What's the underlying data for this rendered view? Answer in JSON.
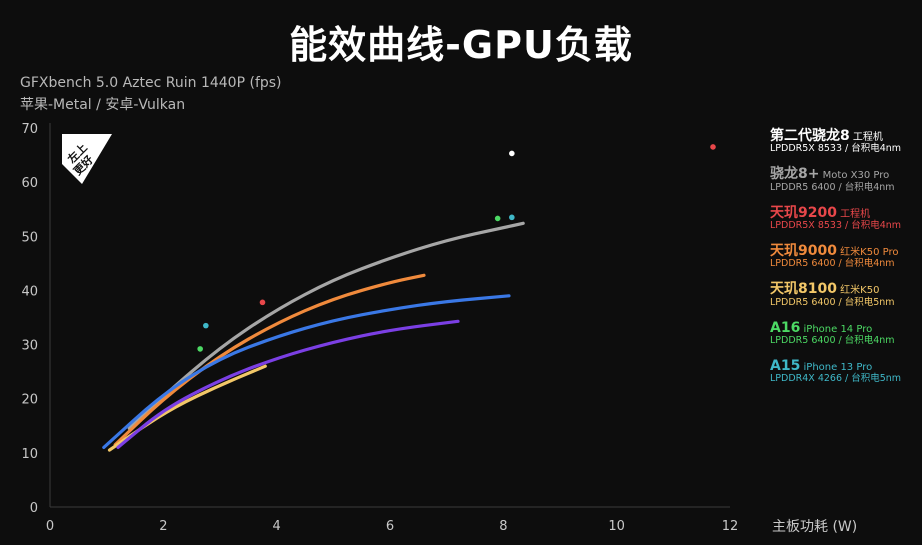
{
  "title": "能效曲线-GPU负载",
  "subtitle_line1": "GFXbench 5.0 Aztec Ruin 1440P (fps)",
  "subtitle_line2": "苹果-Metal / 安卓-Vulkan",
  "badge_text": "左上更好",
  "chart_data": {
    "type": "line",
    "xlabel": "主板功耗 (W)",
    "ylabel": "",
    "xlim": [
      0,
      12
    ],
    "ylim": [
      0,
      70
    ],
    "x_ticks": [
      0,
      2,
      4,
      6,
      8,
      10,
      12
    ],
    "y_ticks": [
      0,
      10,
      20,
      30,
      40,
      50,
      60,
      70
    ],
    "grid": false,
    "legend_position": "right",
    "series": [
      {
        "name": "第二代骁龙8",
        "subname": "工程机",
        "spec": "LPDDR5X 8533 / 台积电4nm",
        "color": "#ffffff",
        "points": [
          [
            8.15,
            65.3
          ]
        ]
      },
      {
        "name": "骁龙8+",
        "subname": "Moto X30 Pro",
        "spec": "LPDDR5 6400 / 台积电4nm",
        "color": "#a6a6a6",
        "points": [
          [
            1.4,
            14.5
          ],
          [
            2.0,
            20.5
          ],
          [
            3.0,
            29.5
          ],
          [
            4.0,
            36.5
          ],
          [
            5.0,
            42.0
          ],
          [
            6.0,
            46.0
          ],
          [
            7.0,
            49.3
          ],
          [
            8.0,
            51.6
          ],
          [
            8.35,
            52.4
          ]
        ]
      },
      {
        "name": "天玑9200",
        "subname": "工程机",
        "spec": "LPDDR5X 8533 / 台积电4nm",
        "color": "#e8474a",
        "points": [
          [
            3.75,
            37.8
          ],
          [
            11.7,
            66.5
          ]
        ]
      },
      {
        "name": "天玑9000",
        "subname": "红米K50 Pro",
        "spec": "LPDDR5 6400 / 台积电4nm",
        "color": "#f08a3c",
        "points": [
          [
            1.15,
            11.5
          ],
          [
            2.0,
            20.0
          ],
          [
            3.0,
            28.0
          ],
          [
            4.0,
            34.0
          ],
          [
            5.0,
            38.5
          ],
          [
            6.0,
            41.5
          ],
          [
            6.6,
            42.8
          ]
        ]
      },
      {
        "name": "天玑8100",
        "subname": "红米K50",
        "spec": "LPDDR5 6400 / 台积电5nm",
        "color": "#f2c768",
        "points": [
          [
            1.05,
            10.5
          ],
          [
            1.6,
            14.5
          ],
          [
            2.2,
            18.5
          ],
          [
            3.0,
            22.5
          ],
          [
            3.8,
            26.0
          ]
        ]
      },
      {
        "name": "A16",
        "subname": "iPhone 14 Pro",
        "spec": "LPDDR5 6400 / 台积电4nm",
        "color": "#4cd964",
        "points": [
          [
            2.65,
            29.2
          ],
          [
            7.9,
            53.3
          ]
        ]
      },
      {
        "name": "A15",
        "subname": "iPhone 13 Pro",
        "spec": "LPDDR4X 4266 / 台积电5nm",
        "color": "#3fb8c8",
        "points": [
          [
            2.75,
            33.5
          ],
          [
            8.15,
            53.5
          ]
        ]
      },
      {
        "name": "",
        "subname": "",
        "spec": "",
        "color": "#3a78e6",
        "legend": false,
        "points": [
          [
            0.95,
            11.0
          ],
          [
            2.0,
            21.0
          ],
          [
            3.0,
            27.5
          ],
          [
            4.0,
            31.5
          ],
          [
            5.0,
            34.5
          ],
          [
            6.0,
            36.5
          ],
          [
            7.0,
            38.0
          ],
          [
            8.1,
            39.0
          ]
        ]
      },
      {
        "name": "",
        "subname": "",
        "spec": "",
        "color": "#7b3fe4",
        "legend": false,
        "points": [
          [
            1.2,
            11.0
          ],
          [
            2.0,
            18.0
          ],
          [
            3.0,
            23.5
          ],
          [
            4.0,
            27.5
          ],
          [
            5.0,
            30.5
          ],
          [
            6.0,
            32.7
          ],
          [
            7.2,
            34.3
          ]
        ]
      }
    ]
  }
}
